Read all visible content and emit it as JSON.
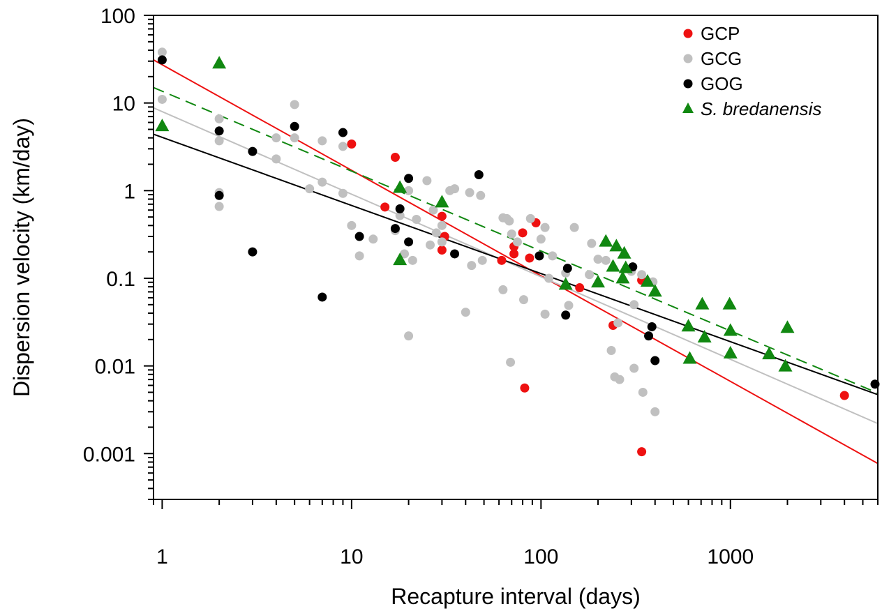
{
  "chart_data": {
    "type": "scatter",
    "xlabel": "Recapture interval (days)",
    "ylabel": "Dispersion velocity (km/day)",
    "xscale": "log",
    "yscale": "log",
    "xlim": [
      0.9,
      6000
    ],
    "ylim": [
      0.0003,
      100
    ],
    "x_ticks": [
      {
        "value": 1,
        "label": "1"
      },
      {
        "value": 10,
        "label": "10"
      },
      {
        "value": 100,
        "label": "100"
      },
      {
        "value": 1000,
        "label": "1000"
      }
    ],
    "y_ticks": [
      {
        "value": 0.001,
        "label": "0.001"
      },
      {
        "value": 0.01,
        "label": "0.01"
      },
      {
        "value": 0.1,
        "label": "0.1"
      },
      {
        "value": 1,
        "label": "1"
      },
      {
        "value": 10,
        "label": "10"
      },
      {
        "value": 100,
        "label": "100"
      }
    ],
    "legend_position": "top-right",
    "grid": false,
    "series": [
      {
        "name": "GCP",
        "color": "#ee1111",
        "marker": "circle",
        "italic": false,
        "fit": {
          "style": "solid",
          "x_range": [
            0.9,
            6000
          ],
          "y_range": [
            31.0,
            0.00077
          ]
        },
        "points": [
          [
            10,
            3.4
          ],
          [
            15,
            0.65
          ],
          [
            17,
            2.4
          ],
          [
            30,
            0.51
          ],
          [
            30,
            0.21
          ],
          [
            31,
            0.3
          ],
          [
            62,
            0.16
          ],
          [
            72,
            0.19
          ],
          [
            72,
            0.23
          ],
          [
            80,
            0.33
          ],
          [
            82,
            0.0056
          ],
          [
            87,
            0.17
          ],
          [
            94,
            0.43
          ],
          [
            160,
            0.078
          ],
          [
            240,
            0.029
          ],
          [
            340,
            0.095
          ],
          [
            340,
            0.00105
          ],
          [
            4000,
            0.0046
          ]
        ]
      },
      {
        "name": "GCG",
        "color": "#c0c0c0",
        "marker": "circle",
        "italic": false,
        "fit": {
          "style": "solid",
          "x_range": [
            0.9,
            6000
          ],
          "y_range": [
            8.8,
            0.0022
          ]
        },
        "points": [
          [
            1,
            38
          ],
          [
            1,
            11
          ],
          [
            2,
            6.6
          ],
          [
            2,
            3.7
          ],
          [
            2,
            0.95
          ],
          [
            2,
            0.66
          ],
          [
            4,
            4
          ],
          [
            4,
            2.3
          ],
          [
            5,
            9.6
          ],
          [
            5,
            4
          ],
          [
            6,
            1.05
          ],
          [
            7,
            3.7
          ],
          [
            7,
            1.25
          ],
          [
            9,
            3.2
          ],
          [
            9,
            0.93
          ],
          [
            10,
            0.4
          ],
          [
            11,
            0.18
          ],
          [
            13,
            0.28
          ],
          [
            17,
            0.35
          ],
          [
            18,
            0.52
          ],
          [
            19,
            0.19
          ],
          [
            20,
            1
          ],
          [
            20,
            0.022
          ],
          [
            21,
            0.16
          ],
          [
            22,
            0.47
          ],
          [
            25,
            1.3
          ],
          [
            26,
            0.24
          ],
          [
            27,
            0.6
          ],
          [
            28,
            0.33
          ],
          [
            30,
            0.4
          ],
          [
            30,
            0.26
          ],
          [
            33,
            1
          ],
          [
            35,
            1.05
          ],
          [
            40,
            0.041
          ],
          [
            42,
            0.95
          ],
          [
            43,
            0.14
          ],
          [
            48,
            0.88
          ],
          [
            49,
            0.16
          ],
          [
            63,
            0.49
          ],
          [
            63,
            0.074
          ],
          [
            66,
            0.48
          ],
          [
            68,
            0.45
          ],
          [
            69,
            0.011
          ],
          [
            70,
            0.32
          ],
          [
            75,
            0.26
          ],
          [
            81,
            0.057
          ],
          [
            88,
            0.48
          ],
          [
            100,
            0.28
          ],
          [
            105,
            0.38
          ],
          [
            105,
            0.039
          ],
          [
            110,
            0.1
          ],
          [
            115,
            0.18
          ],
          [
            135,
            0.115
          ],
          [
            140,
            0.049
          ],
          [
            150,
            0.38
          ],
          [
            180,
            0.11
          ],
          [
            185,
            0.25
          ],
          [
            200,
            0.165
          ],
          [
            220,
            0.16
          ],
          [
            235,
            0.015
          ],
          [
            245,
            0.0075
          ],
          [
            255,
            0.031
          ],
          [
            260,
            0.007
          ],
          [
            300,
            0.12
          ],
          [
            310,
            0.05
          ],
          [
            310,
            0.0094
          ],
          [
            340,
            0.11
          ],
          [
            345,
            0.005
          ],
          [
            390,
            0.091
          ],
          [
            400,
            0.003
          ]
        ]
      },
      {
        "name": "GOG",
        "color": "#000000",
        "marker": "circle",
        "italic": false,
        "fit": {
          "style": "solid",
          "x_range": [
            0.9,
            6000
          ],
          "y_range": [
            4.4,
            0.0047
          ]
        },
        "points": [
          [
            1,
            31
          ],
          [
            2,
            4.8
          ],
          [
            2,
            0.88
          ],
          [
            3,
            2.8
          ],
          [
            3,
            0.2
          ],
          [
            5,
            5.4
          ],
          [
            7,
            0.061
          ],
          [
            9,
            4.6
          ],
          [
            11,
            0.3
          ],
          [
            17,
            0.37
          ],
          [
            18,
            0.62
          ],
          [
            20,
            1.38
          ],
          [
            20,
            0.26
          ],
          [
            35,
            0.19
          ],
          [
            47,
            1.52
          ],
          [
            98,
            0.18
          ],
          [
            135,
            0.038
          ],
          [
            138,
            0.13
          ],
          [
            305,
            0.135
          ],
          [
            370,
            0.022
          ],
          [
            385,
            0.028
          ],
          [
            400,
            0.0115
          ],
          [
            5800,
            0.0062
          ]
        ]
      },
      {
        "name": "S. bredanensis",
        "color": "#118811",
        "marker": "triangle",
        "italic": true,
        "fit": {
          "style": "dashed",
          "x_range": [
            0.9,
            6000
          ],
          "y_range": [
            15.0,
            0.0049
          ]
        },
        "points": [
          [
            1,
            5.4
          ],
          [
            2,
            28
          ],
          [
            18,
            1.07
          ],
          [
            18,
            0.16
          ],
          [
            30,
            0.73
          ],
          [
            135,
            0.084
          ],
          [
            200,
            0.089
          ],
          [
            220,
            0.26
          ],
          [
            240,
            0.135
          ],
          [
            250,
            0.23
          ],
          [
            270,
            0.099
          ],
          [
            275,
            0.19
          ],
          [
            280,
            0.13
          ],
          [
            365,
            0.091
          ],
          [
            400,
            0.07
          ],
          [
            600,
            0.028
          ],
          [
            610,
            0.012
          ],
          [
            710,
            0.05
          ],
          [
            730,
            0.021
          ],
          [
            990,
            0.05
          ],
          [
            1000,
            0.025
          ],
          [
            1000,
            0.0138
          ],
          [
            1600,
            0.0135
          ],
          [
            1950,
            0.0098
          ],
          [
            2000,
            0.027
          ]
        ]
      }
    ]
  }
}
